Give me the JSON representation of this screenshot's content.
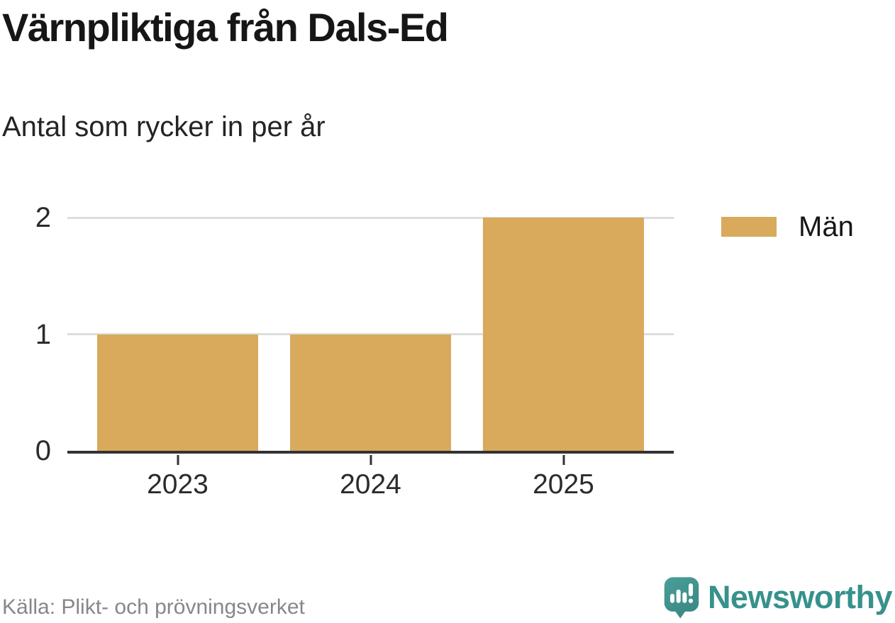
{
  "chart_data": {
    "type": "bar",
    "title": "Värnpliktiga från Dals-Ed",
    "subtitle": "Antal som rycker in per år",
    "categories": [
      "2023",
      "2024",
      "2025"
    ],
    "series": [
      {
        "name": "Män",
        "values": [
          1,
          1,
          2
        ],
        "color": "#D9A95C"
      }
    ],
    "xlabel": "",
    "ylabel": "",
    "ylim": [
      0,
      2
    ],
    "yticks": [
      0,
      1,
      2
    ],
    "grid": true,
    "legend_position": "right"
  },
  "footer": {
    "source_label": "Källa: Plikt- och prövningsverket",
    "brand_name": "Newsworthy"
  },
  "colors": {
    "bar": "#D9A95C",
    "axis": "#333333",
    "gridline": "#DDDDDD",
    "text_dark": "#161616",
    "text_muted": "#85878A",
    "brand_teal": "#37918C",
    "logo_teal": "#459A95",
    "logo_teal_dark": "#3B8B87"
  }
}
